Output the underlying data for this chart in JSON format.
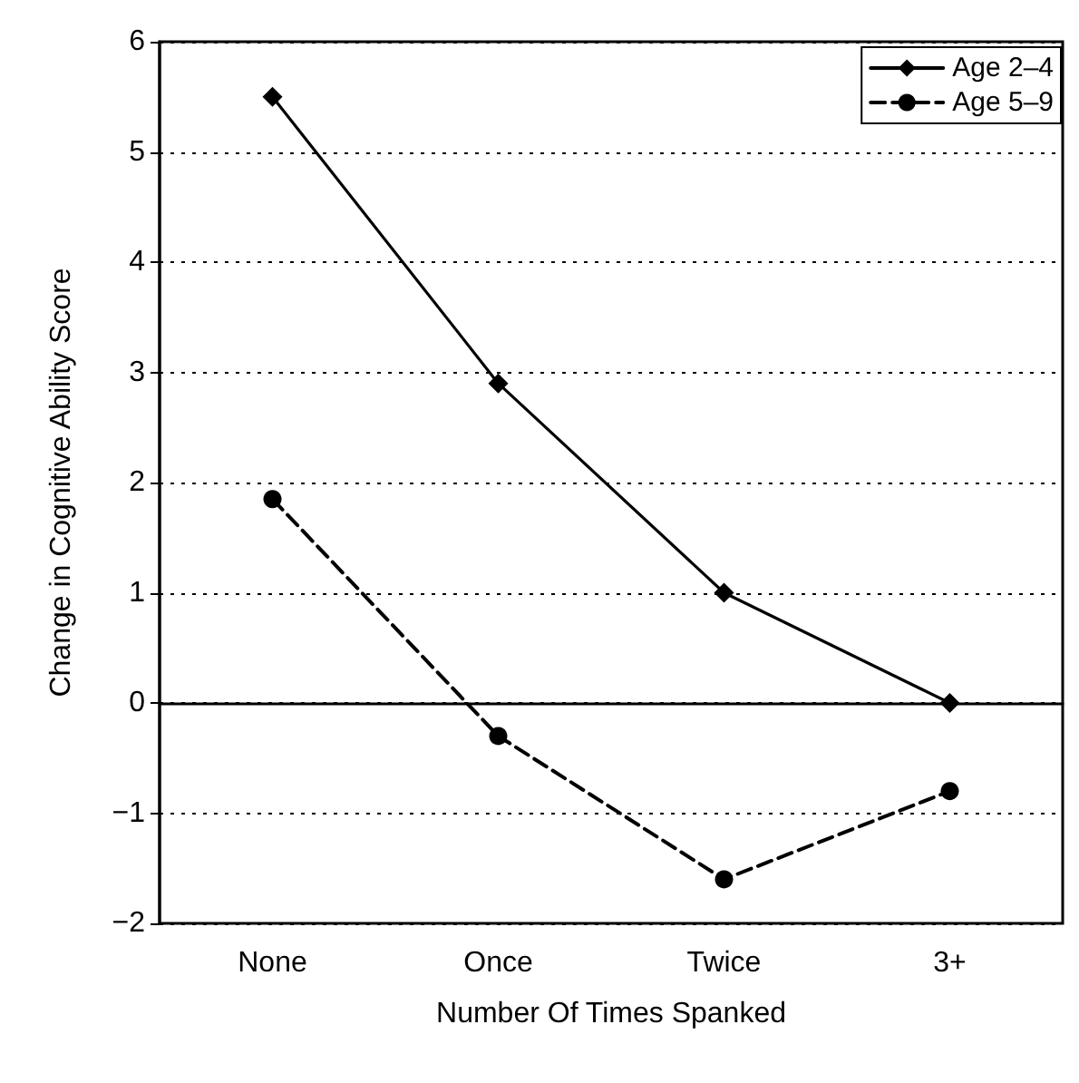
{
  "chart_data": {
    "type": "line",
    "xlabel": "Number Of Times Spanked",
    "ylabel": "Change in Cognitive Ability Score",
    "categories": [
      "None",
      "Once",
      "Twice",
      "3+"
    ],
    "series": [
      {
        "name": "Age 2–4",
        "color": "#000000",
        "values": [
          5.5,
          2.9,
          1.0,
          0.0
        ],
        "marker": "diamond",
        "line_style": "solid"
      },
      {
        "name": "Age 5–9",
        "color": "#000000",
        "values": [
          1.85,
          -0.3,
          -1.6,
          -0.8
        ],
        "marker": "circle",
        "line_style": "dashed"
      }
    ],
    "ylim": [
      -2,
      6
    ],
    "yticks": [
      -2,
      -1,
      0,
      1,
      2,
      3,
      4,
      5,
      6
    ],
    "grid": "y",
    "legend": "top right"
  }
}
